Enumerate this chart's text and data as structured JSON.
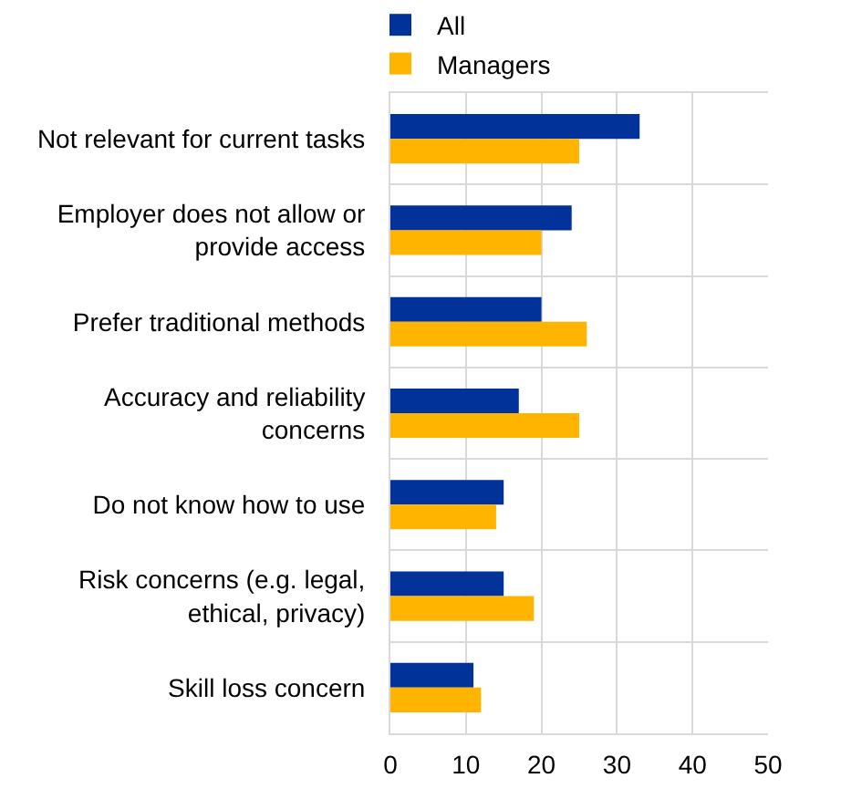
{
  "chart_data": {
    "type": "bar",
    "orientation": "horizontal",
    "categories": [
      "Not relevant for current tasks",
      "Employer does not allow or\nprovide access",
      "Prefer traditional methods",
      "Accuracy and reliability\nconcerns",
      "Do not know how to use",
      "Risk concerns (e.g. legal,\nethical, privacy)",
      "Skill loss concern"
    ],
    "series": [
      {
        "name": "All",
        "color": "#003299",
        "values": [
          33,
          24,
          20,
          17,
          15,
          15,
          11
        ]
      },
      {
        "name": "Managers",
        "color": "#ffb400",
        "values": [
          25,
          20,
          26,
          25,
          14,
          19,
          12
        ]
      }
    ],
    "xlim": [
      0,
      50
    ],
    "xticks": [
      0,
      10,
      20,
      30,
      40,
      50
    ],
    "grid": true,
    "legend": "top left"
  }
}
